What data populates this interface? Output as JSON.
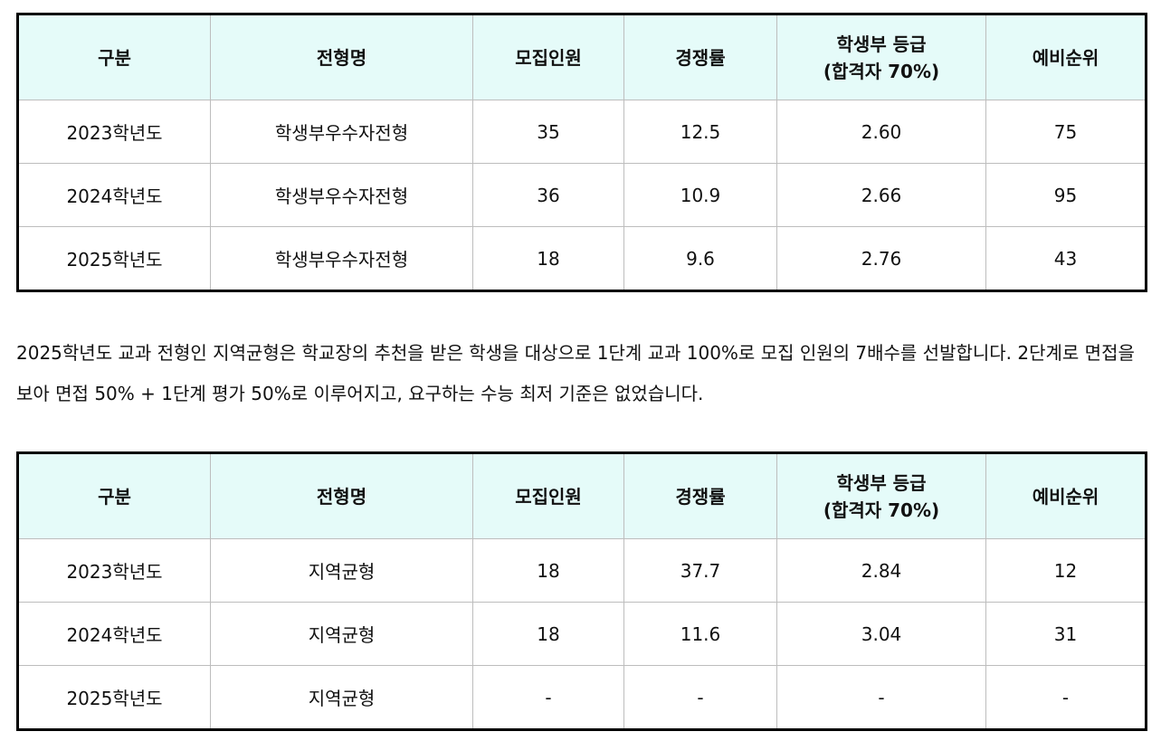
{
  "headers": [
    "구분",
    "전형명",
    "모집인원",
    "경쟁률",
    "학생부 등급",
    "예비순위"
  ],
  "grade_header_line2": "(합격자 70%)",
  "table1": {
    "rows": [
      [
        "2023학년도",
        "학생부우수자전형",
        "35",
        "12.5",
        "2.60",
        "75"
      ],
      [
        "2024학년도",
        "학생부우수자전형",
        "36",
        "10.9",
        "2.66",
        "95"
      ],
      [
        "2025학년도",
        "학생부우수자전형",
        "18",
        "9.6",
        "2.76",
        "43"
      ]
    ]
  },
  "paragraph": "2025학년도 교과 전형인 지역균형은 학교장의 추천을 받은 학생을 대상으로 1단계 교과 100%로 모집 인원의 7배수를 선발합니다. 2단계로 면접을 보아 면접 50% + 1단계 평가 50%로 이루어지고, 요구하는 수능 최저 기준은 없었습니다.",
  "table2": {
    "rows": [
      [
        "2023학년도",
        "지역균형",
        "18",
        "37.7",
        "2.84",
        "12"
      ],
      [
        "2024학년도",
        "지역균형",
        "18",
        "11.6",
        "3.04",
        "31"
      ],
      [
        "2025학년도",
        "지역균형",
        "-",
        "-",
        "-",
        "-"
      ]
    ]
  },
  "colors": {
    "header_bg": "#e5fbf9",
    "border": "#000000"
  }
}
